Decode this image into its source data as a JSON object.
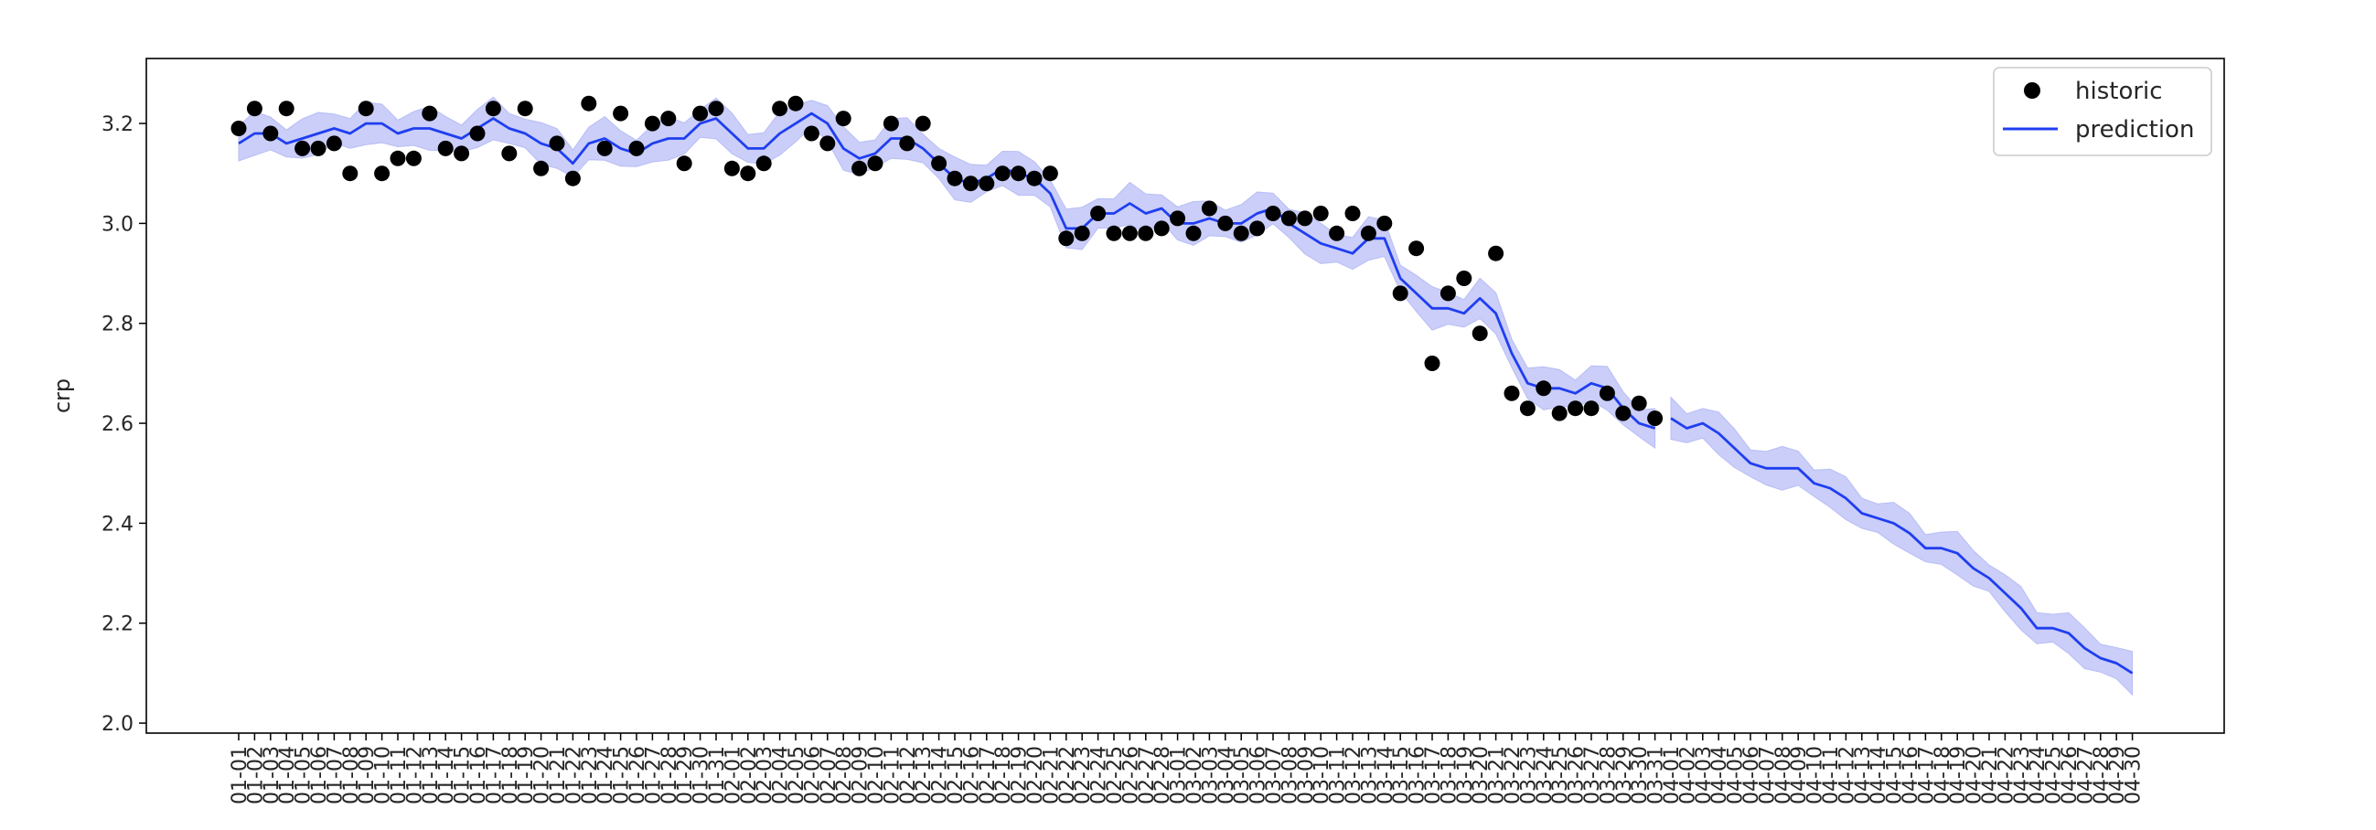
{
  "chart_data": {
    "type": "line",
    "xlabel": "",
    "ylabel": "crp",
    "ylim": [
      1.98,
      3.33
    ],
    "yticks": [
      2.0,
      2.2,
      2.4,
      2.6,
      2.8,
      3.0,
      3.2
    ],
    "ytick_labels": [
      "2.0",
      "2.2",
      "2.4",
      "2.6",
      "2.8",
      "3.0",
      "3.2"
    ],
    "grid": false,
    "legend_position": "top-right",
    "legend": [
      "historic",
      "prediction"
    ],
    "colors": {
      "historic": "#000000",
      "prediction": "#1f3ef0",
      "band": "#b8bdf5"
    },
    "x_tick_labels": [
      "01-01",
      "01-02",
      "01-03",
      "01-04",
      "01-05",
      "01-06",
      "01-07",
      "01-08",
      "01-09",
      "01-10",
      "01-11",
      "01-12",
      "01-13",
      "01-14",
      "01-15",
      "01-16",
      "01-17",
      "01-18",
      "01-19",
      "01-20",
      "01-21",
      "01-22",
      "01-23",
      "01-24",
      "01-25",
      "01-26",
      "01-27",
      "01-28",
      "01-29",
      "01-30",
      "01-31",
      "02-01",
      "02-02",
      "02-03",
      "02-04",
      "02-05",
      "02-06",
      "02-07",
      "02-08",
      "02-09",
      "02-10",
      "02-11",
      "02-12",
      "02-13",
      "02-14",
      "02-15",
      "02-16",
      "02-17",
      "02-18",
      "02-19",
      "02-20",
      "02-21",
      "02-22",
      "02-23",
      "02-24",
      "02-25",
      "02-26",
      "02-27",
      "02-28",
      "03-01",
      "03-02",
      "03-03",
      "03-04",
      "03-05",
      "03-06",
      "03-07",
      "03-08",
      "03-09",
      "03-10",
      "03-11",
      "03-12",
      "03-13",
      "03-14",
      "03-15",
      "03-16",
      "03-17",
      "03-18",
      "03-19",
      "03-20",
      "03-21",
      "03-22",
      "03-23",
      "03-24",
      "03-25",
      "03-26",
      "03-27",
      "03-28",
      "03-29",
      "03-30",
      "03-31",
      "04-01",
      "04-02",
      "04-03",
      "04-04",
      "04-05",
      "04-06",
      "04-07",
      "04-08",
      "04-09",
      "04-10",
      "04-11",
      "04-12",
      "04-13",
      "04-14",
      "04-15",
      "04-16",
      "04-17",
      "04-18",
      "04-19",
      "04-20",
      "04-21",
      "04-22",
      "04-23",
      "04-24",
      "04-25",
      "04-26",
      "04-27",
      "04-28",
      "04-29",
      "04-30"
    ],
    "historic": [
      3.19,
      3.23,
      3.18,
      3.23,
      3.15,
      3.15,
      3.16,
      3.1,
      3.23,
      3.1,
      3.13,
      3.13,
      3.22,
      3.15,
      3.14,
      3.18,
      3.23,
      3.14,
      3.23,
      3.11,
      3.16,
      3.09,
      3.24,
      3.15,
      3.22,
      3.15,
      3.2,
      3.21,
      3.12,
      3.22,
      3.23,
      3.11,
      3.1,
      3.12,
      3.23,
      3.24,
      3.18,
      3.16,
      3.21,
      3.11,
      3.12,
      3.2,
      3.16,
      3.2,
      3.12,
      3.09,
      3.08,
      3.08,
      3.1,
      3.1,
      3.09,
      3.1,
      2.97,
      2.98,
      3.02,
      2.98,
      2.98,
      2.98,
      2.99,
      3.01,
      2.98,
      3.03,
      3.0,
      2.98,
      2.99,
      3.02,
      3.01,
      3.01,
      3.02,
      2.98,
      3.02,
      2.98,
      3.0,
      2.86,
      2.95,
      2.72,
      2.86,
      2.89,
      2.78,
      2.94,
      2.66,
      2.63,
      2.67,
      2.62,
      2.63,
      2.63,
      2.66,
      2.62,
      2.64,
      2.61
    ],
    "prediction": [
      3.16,
      3.18,
      3.18,
      3.16,
      3.17,
      3.18,
      3.19,
      3.18,
      3.2,
      3.2,
      3.18,
      3.19,
      3.19,
      3.18,
      3.17,
      3.19,
      3.21,
      3.19,
      3.18,
      3.16,
      3.15,
      3.12,
      3.16,
      3.17,
      3.15,
      3.14,
      3.16,
      3.17,
      3.17,
      3.2,
      3.21,
      3.18,
      3.15,
      3.15,
      3.18,
      3.2,
      3.22,
      3.2,
      3.15,
      3.13,
      3.14,
      3.17,
      3.17,
      3.15,
      3.12,
      3.09,
      3.08,
      3.09,
      3.11,
      3.1,
      3.09,
      3.06,
      2.99,
      2.99,
      3.02,
      3.02,
      3.04,
      3.02,
      3.03,
      3.0,
      3.0,
      3.01,
      3.0,
      3.0,
      3.02,
      3.03,
      3.0,
      2.98,
      2.96,
      2.95,
      2.94,
      2.97,
      2.97,
      2.89,
      2.86,
      2.83,
      2.83,
      2.82,
      2.85,
      2.82,
      2.74,
      2.68,
      2.67,
      2.67,
      2.66,
      2.68,
      2.67,
      2.63,
      2.6,
      2.59,
      2.61,
      2.59,
      2.6,
      2.58,
      2.55,
      2.52,
      2.51,
      2.51,
      2.51,
      2.48,
      2.47,
      2.45,
      2.42,
      2.41,
      2.4,
      2.38,
      2.35,
      2.35,
      2.34,
      2.31,
      2.29,
      2.26,
      2.23,
      2.19,
      2.19,
      2.18,
      2.15,
      2.13,
      2.12,
      2.1
    ],
    "band_halfwidth": 0.035
  }
}
